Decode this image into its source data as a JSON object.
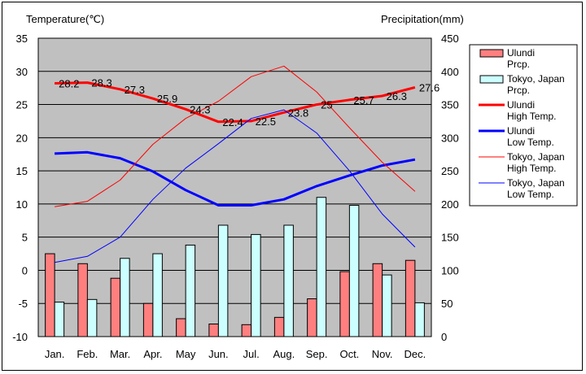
{
  "chart_data": {
    "type": "bar+line",
    "categories": [
      "Jan.",
      "Feb.",
      "Mar.",
      "Apr.",
      "May",
      "Jun.",
      "Jul.",
      "Aug.",
      "Sep.",
      "Oct.",
      "Nov.",
      "Dec."
    ],
    "left_axis": {
      "label": "Temperature(℃)",
      "min": -10,
      "max": 35,
      "step": 5
    },
    "right_axis": {
      "label": "Precipitation(mm)",
      "min": 0,
      "max": 450,
      "step": 50
    },
    "grid": true,
    "legend_position": "right",
    "bars": [
      {
        "name": "Ulundi Prcp.",
        "color": "#ff7f7f",
        "values": [
          125,
          110,
          88,
          50,
          27,
          19,
          18,
          29,
          57,
          98,
          110,
          115
        ]
      },
      {
        "name": "Tokyo, Japan Prcp.",
        "color": "#ccffff",
        "values": [
          52,
          56,
          118,
          125,
          138,
          168,
          154,
          168,
          210,
          198,
          93,
          51
        ]
      }
    ],
    "lines": [
      {
        "name": "Ulundi High Temp.",
        "color": "#ff0000",
        "width": 3,
        "values": [
          28.2,
          28.3,
          27.3,
          25.9,
          24.3,
          22.4,
          22.5,
          23.8,
          25,
          25.7,
          26.3,
          27.6
        ],
        "labels": [
          "28.2",
          "28.3",
          "27.3",
          "25.9",
          "24.3",
          "22.4",
          "22.5",
          "23.8",
          "25",
          "25.7",
          "26.3",
          "27.6"
        ]
      },
      {
        "name": "Ulundi Low Temp.",
        "color": "#0000ff",
        "width": 3,
        "values": [
          17.6,
          17.8,
          16.9,
          14.9,
          12.1,
          9.8,
          9.8,
          10.7,
          12.7,
          14.3,
          15.8,
          16.7
        ]
      },
      {
        "name": "Tokyo, Japan High Temp.",
        "color": "#ff0000",
        "width": 1,
        "values": [
          9.6,
          10.4,
          13.6,
          19.0,
          22.9,
          25.5,
          29.2,
          30.8,
          26.9,
          21.5,
          16.3,
          11.9
        ]
      },
      {
        "name": "Tokyo, Japan Low Temp.",
        "color": "#0000ff",
        "width": 1,
        "values": [
          1.2,
          2.1,
          5.0,
          10.7,
          15.4,
          19.1,
          22.9,
          24.2,
          20.7,
          15.0,
          8.5,
          3.5
        ]
      }
    ],
    "legend": [
      {
        "line1": "Ulundi",
        "line2": "Prcp."
      },
      {
        "line1": "Tokyo, Japan",
        "line2": "Prcp."
      },
      {
        "line1": "Ulundi",
        "line2": "High Temp."
      },
      {
        "line1": "Ulundi",
        "line2": "Low Temp."
      },
      {
        "line1": "Tokyo, Japan",
        "line2": "High Temp."
      },
      {
        "line1": "Tokyo, Japan",
        "line2": "Low Temp."
      }
    ]
  }
}
